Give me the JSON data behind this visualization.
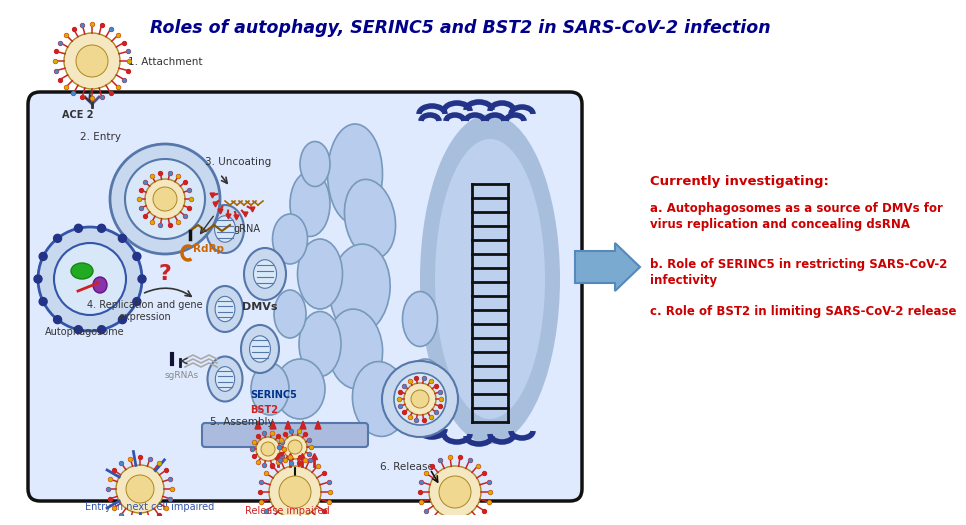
{
  "title": "Roles of autophagy, SERINC5 and BST2 in SARS-CoV-2 infection",
  "title_color": "#00008B",
  "title_fontsize": 12.5,
  "bg_color": "#FFFFFF",
  "cell_bg": "#FFFFFF",
  "cell_border": "#111111",
  "text_red": "#CC0000",
  "text_darkblue": "#00008B",
  "text_blue": "#3355AA",
  "currently_investigating": "Currently investigating:",
  "bullet_a": "a. Autophagosomes as a source of DMVs for\nvirus replication and concealing dsRNA",
  "bullet_b": "b. Role of SERINC5 in restricting SARS-CoV-2\ninfectivity",
  "bullet_c": "c. Role of BST2 in limiting SARS-CoV-2 release",
  "label_1": "1. Attachment",
  "label_2": "2. Entry",
  "label_3": "3. Uncoating",
  "label_4": "4. Replication and gene\nexpression",
  "label_5": "5. Assembly",
  "label_6": "6. Release",
  "label_ace2": "ACE 2",
  "label_autophagosome": "Autophagosome",
  "label_dmvs": "DMVs",
  "label_grna": "gRNA",
  "label_rdrp": "RdRp",
  "label_sgrnas": "sgRNAs",
  "label_serinc5": "SERINC5",
  "label_bst2": "BST2",
  "label_entry_impaired": "Entry in next cell impaired",
  "label_release_impaired": "Release impaired",
  "nucleus_color": "#A8BEDD",
  "nucleus_edge": "#3355AA",
  "er_color": "#B8CCEE",
  "er_edge": "#3355AA",
  "cell_fill": "#E0EAFF"
}
